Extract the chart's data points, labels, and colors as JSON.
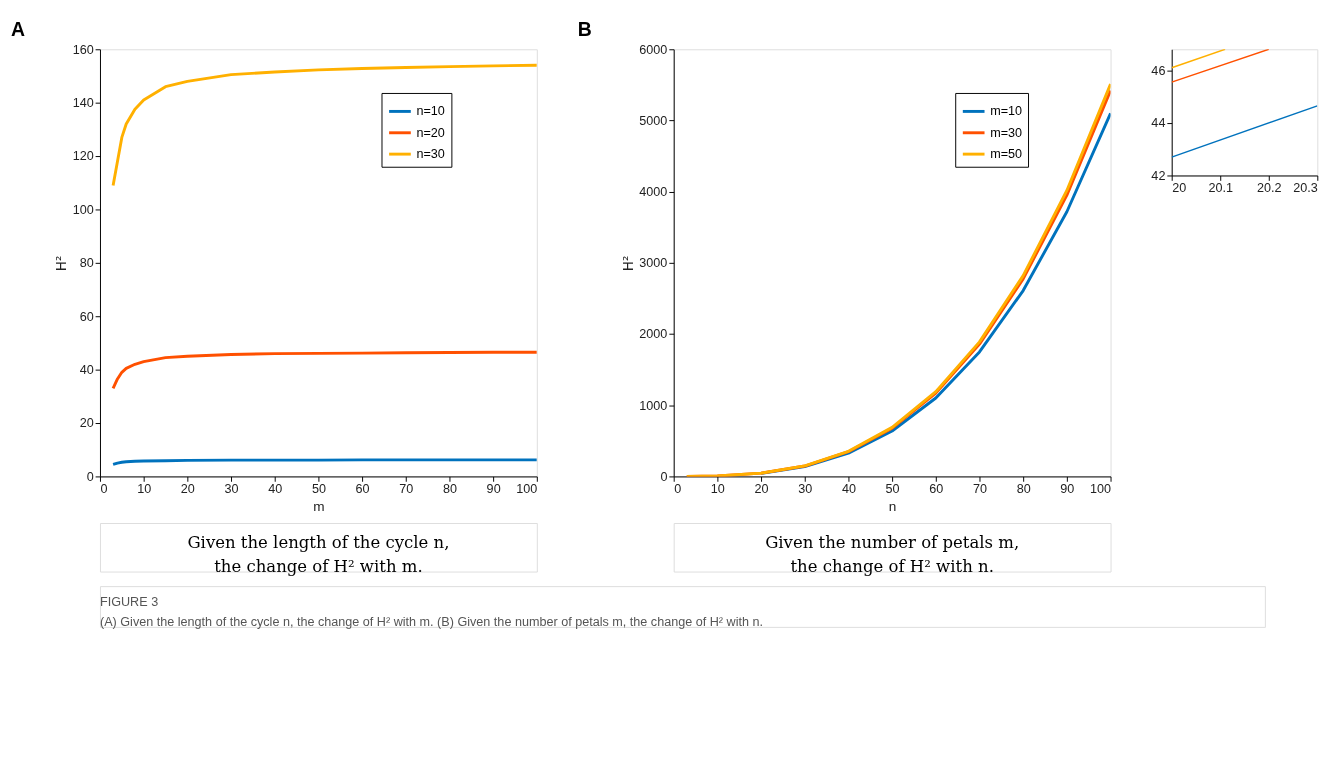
{
  "chart_data": [
    {
      "type": "line",
      "title": "A",
      "xlabel": "m",
      "ylabel": "H²",
      "xlim": [
        0,
        100
      ],
      "ylim": [
        0,
        160
      ],
      "xticks": [
        0,
        10,
        20,
        30,
        40,
        50,
        60,
        70,
        80,
        90,
        100
      ],
      "yticks": [
        0,
        20,
        40,
        60,
        80,
        100,
        120,
        140,
        160
      ],
      "grid": false,
      "legend": "top right",
      "line_style": "solid",
      "x": [
        3,
        4,
        5,
        6,
        8,
        10,
        15,
        20,
        30,
        40,
        50,
        60,
        70,
        80,
        90,
        100
      ],
      "series": [
        {
          "name": "n=10",
          "color": "#0072bd",
          "values": [
            4.5,
            5,
            5.3,
            5.5,
            5.7,
            5.8,
            5.9,
            6,
            6.1,
            6.1,
            6.1,
            6.2,
            6.2,
            6.2,
            6.2,
            6.2
          ]
        },
        {
          "name": "n=20",
          "color": "#ff5000",
          "values": [
            33,
            36.5,
            39,
            40.5,
            42,
            43,
            44.5,
            45,
            45.7,
            46,
            46.1,
            46.2,
            46.3,
            46.4,
            46.5,
            46.5
          ]
        },
        {
          "name": "n=30",
          "color": "#ffb000",
          "values": [
            109,
            118,
            127,
            132,
            137.5,
            141,
            146,
            148,
            150.5,
            151.5,
            152.3,
            152.8,
            153.2,
            153.5,
            153.8,
            154
          ]
        }
      ],
      "annotations": [
        "Given the length of the cycle n,",
        "the change of H² with m.",
        "FIGURE 3",
        "(A) Given the length of the cycle n, the change of H² with m. (B) Given the number of petals m, the change of H² with n."
      ]
    },
    {
      "type": "line",
      "title": "B",
      "xlabel": "n",
      "ylabel": "H²",
      "xlim": [
        0,
        100
      ],
      "ylim": [
        0,
        6000
      ],
      "xticks": [
        0,
        10,
        20,
        30,
        40,
        50,
        60,
        70,
        80,
        90,
        100
      ],
      "yticks": [
        0,
        1000,
        2000,
        3000,
        4000,
        5000,
        6000
      ],
      "grid": false,
      "legend": "top right",
      "line_style": "solid",
      "x": [
        3,
        10,
        20,
        30,
        40,
        50,
        60,
        70,
        80,
        90,
        100
      ],
      "series": [
        {
          "name": "m=10",
          "color": "#0072bd",
          "values": [
            null,
            null,
            43,
            138,
            326,
            638,
            1102,
            1749,
            2611,
            3718,
            5100
          ]
        },
        {
          "name": "m=30",
          "color": "#ff5000",
          "values": [
            0,
            5,
            46,
            146,
            347,
            678,
            1171,
            1859,
            2775,
            3951,
            5420
          ]
        },
        {
          "name": "m=50",
          "color": "#ffb000",
          "values": [
            0,
            6,
            46,
            149,
            353,
            689,
            1190,
            1890,
            2821,
            4017,
            5510
          ]
        }
      ],
      "annotations": [
        "Given the number of petals m,",
        "the change of H² with n."
      ]
    },
    {
      "type": "line",
      "xlim": [
        20,
        20.3
      ],
      "ylim": [
        42,
        46.8
      ],
      "xticks": [
        20,
        20.1,
        20.2,
        20.3
      ],
      "yticks": [
        42,
        44,
        46
      ],
      "grid": false,
      "line_style": "solid",
      "series": [
        {
          "color": "#0072bd",
          "x": [
            20,
            20.3
          ],
          "values": [
            42.7,
            44.65
          ]
        },
        {
          "color": "#ff5000",
          "x": [
            20,
            20.2
          ],
          "values": [
            45.55,
            46.8
          ]
        },
        {
          "color": "#ffb000",
          "x": [
            20,
            20.11
          ],
          "values": [
            46.1,
            46.8
          ]
        }
      ]
    }
  ]
}
